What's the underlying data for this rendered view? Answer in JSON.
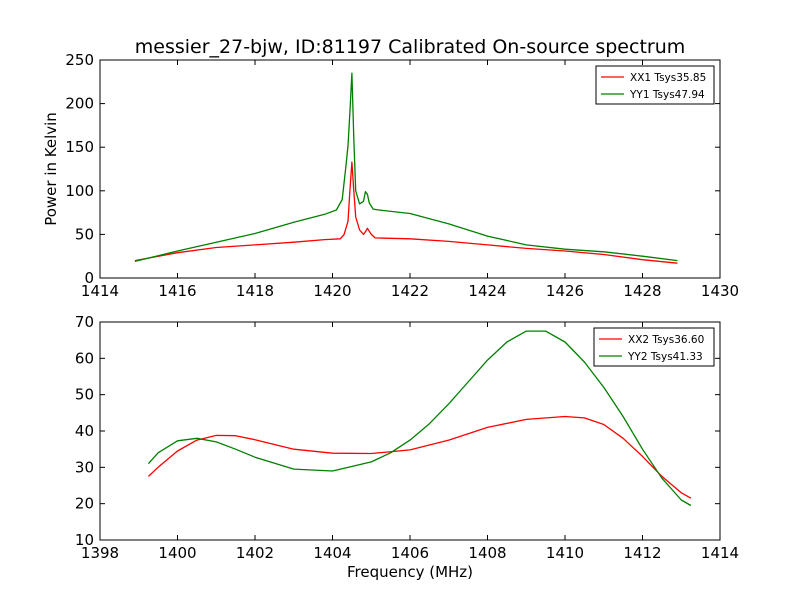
{
  "chart_data": [
    {
      "type": "line",
      "title": "messier_27-bjw, ID:81197 Calibrated On-source spectrum",
      "xlabel": "",
      "ylabel": "Power in Kelvin",
      "xlim": [
        1414,
        1430
      ],
      "ylim": [
        0,
        250
      ],
      "xticks": [
        1414,
        1416,
        1418,
        1420,
        1422,
        1424,
        1426,
        1428,
        1430
      ],
      "yticks": [
        0,
        50,
        100,
        150,
        200,
        250
      ],
      "legend_position": "top-right",
      "series": [
        {
          "name": "XX1 Tsys35.85",
          "color": "#ff0000",
          "x": [
            1414.9,
            1416,
            1417,
            1418,
            1419,
            1419.8,
            1420.2,
            1420.3,
            1420.4,
            1420.45,
            1420.5,
            1420.55,
            1420.6,
            1420.7,
            1420.8,
            1420.85,
            1420.9,
            1421.0,
            1421.1,
            1422,
            1423,
            1424,
            1425,
            1426,
            1427,
            1428,
            1428.9
          ],
          "y": [
            20,
            29,
            35,
            38,
            41,
            44,
            45,
            50,
            65,
            100,
            133,
            100,
            70,
            55,
            50,
            53,
            57,
            50,
            46,
            45,
            42,
            38,
            34,
            31,
            27,
            21,
            17
          ]
        },
        {
          "name": "YY1 Tsys47.94",
          "color": "#008000",
          "x": [
            1414.9,
            1416,
            1417,
            1418,
            1419,
            1419.8,
            1420.1,
            1420.25,
            1420.35,
            1420.4,
            1420.45,
            1420.5,
            1420.55,
            1420.6,
            1420.7,
            1420.8,
            1420.85,
            1420.9,
            1420.95,
            1421.05,
            1421.2,
            1422,
            1423,
            1424,
            1425,
            1426,
            1427,
            1428,
            1428.9
          ],
          "y": [
            19,
            31,
            41,
            51,
            64,
            73,
            78,
            90,
            130,
            152,
            190,
            235,
            160,
            100,
            85,
            88,
            99,
            96,
            86,
            79,
            78,
            74,
            62,
            48,
            38,
            33,
            30,
            25,
            20
          ]
        }
      ]
    },
    {
      "type": "line",
      "title": "",
      "xlabel": "Frequency (MHz)",
      "ylabel": "",
      "xlim": [
        1398,
        1414
      ],
      "ylim": [
        10,
        70
      ],
      "xticks": [
        1398,
        1400,
        1402,
        1404,
        1406,
        1408,
        1410,
        1412,
        1414
      ],
      "yticks": [
        10,
        20,
        30,
        40,
        50,
        60,
        70
      ],
      "legend_position": "top-right",
      "series": [
        {
          "name": "XX2 Tsys36.60",
          "color": "#ff0000",
          "x": [
            1399.25,
            1399.5,
            1400,
            1400.5,
            1401,
            1401.5,
            1402,
            1403,
            1404,
            1405,
            1406,
            1407,
            1408,
            1409,
            1410,
            1410.5,
            1411,
            1411.5,
            1412,
            1412.5,
            1413,
            1413.25
          ],
          "y": [
            27.5,
            30,
            34.5,
            37.5,
            38.8,
            38.7,
            37.6,
            35,
            33.9,
            33.8,
            34.8,
            37.5,
            41,
            43.2,
            44,
            43.6,
            41.8,
            38,
            33,
            27.5,
            23,
            21.5
          ]
        },
        {
          "name": "YY2 Tsys41.33",
          "color": "#008000",
          "x": [
            1399.25,
            1399.5,
            1400,
            1400.5,
            1401,
            1401.5,
            1402,
            1403,
            1404,
            1405,
            1405.5,
            1406,
            1406.5,
            1407,
            1407.5,
            1408,
            1408.5,
            1409,
            1409.5,
            1410,
            1410.5,
            1411,
            1411.5,
            1412,
            1412.5,
            1413,
            1413.25
          ],
          "y": [
            31,
            34,
            37.3,
            38,
            37,
            35,
            32.8,
            29.5,
            29,
            31.5,
            34,
            37.5,
            42,
            47.5,
            53.5,
            59.5,
            64.5,
            67.5,
            67.5,
            64.5,
            59,
            52,
            44,
            35,
            27,
            21,
            19.5
          ]
        }
      ]
    }
  ]
}
